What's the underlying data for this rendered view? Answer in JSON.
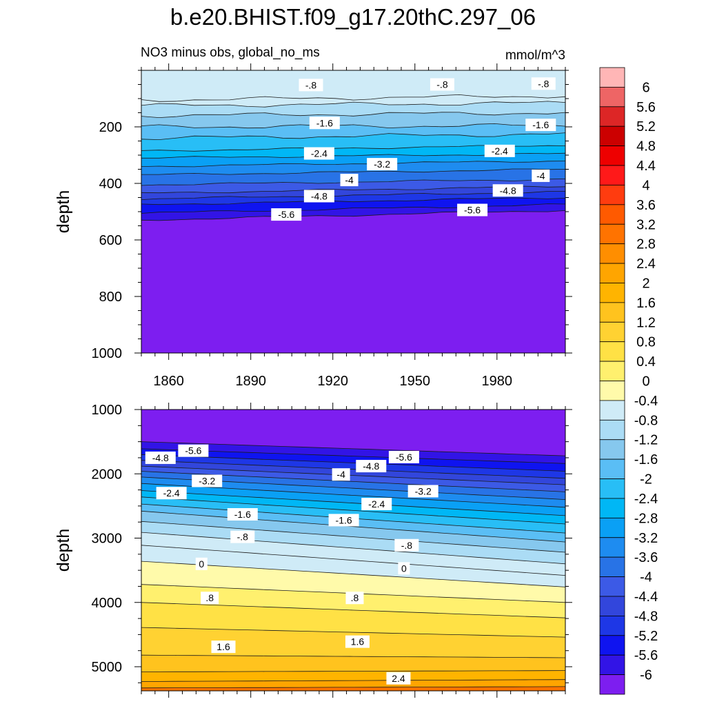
{
  "title": "b.e20.BHIST.f09_g17.20thC.297_06",
  "subtitle_left": "NO3 minus obs, global_no_ms",
  "subtitle_right": "mmol/m^3",
  "chart_data": [
    {
      "type": "heatmap",
      "panel": "upper",
      "title": "NO3 minus obs, global_no_ms",
      "units": "mmol/m^3",
      "ylabel": "depth",
      "xlabel": "",
      "x_ticks": [
        "1860",
        "1890",
        "1920",
        "1950",
        "1980"
      ],
      "y_ticks": [
        "200",
        "400",
        "600",
        "800",
        "1000"
      ],
      "xlim": [
        1850,
        2005
      ],
      "ylim": [
        1000,
        0
      ],
      "y_reversed": true,
      "contour_levels": [
        -6,
        -5.6,
        -5.2,
        -4.8,
        -4.4,
        -4,
        -3.6,
        -3.2,
        -2.8,
        -2.4,
        -2,
        -1.6,
        -1.2,
        -0.8,
        -0.4
      ],
      "contour_depth_at_1850": [
        530,
        505,
        475,
        455,
        435,
        405,
        370,
        340,
        310,
        285,
        240,
        200,
        160,
        125,
        105
      ],
      "contour_depth_at_2005": [
        495,
        475,
        450,
        430,
        410,
        385,
        350,
        320,
        295,
        265,
        225,
        195,
        150,
        115,
        90
      ],
      "contour_labels": [
        {
          "text": "-.8",
          "x": 1912,
          "depth": 52
        },
        {
          "text": "-.8",
          "x": 1960,
          "depth": 50
        },
        {
          "text": "-.8",
          "x": 1997,
          "depth": 47
        },
        {
          "text": "-1.6",
          "x": 1917,
          "depth": 186
        },
        {
          "text": "-1.6",
          "x": 1996,
          "depth": 193
        },
        {
          "text": "-2.4",
          "x": 1915,
          "depth": 294
        },
        {
          "text": "-2.4",
          "x": 1981,
          "depth": 285
        },
        {
          "text": "-3.2",
          "x": 1938,
          "depth": 332
        },
        {
          "text": "-4",
          "x": 1926,
          "depth": 388
        },
        {
          "text": "-4",
          "x": 1996,
          "depth": 373
        },
        {
          "text": "-4.8",
          "x": 1915,
          "depth": 445
        },
        {
          "text": "-4.8",
          "x": 1984,
          "depth": 425
        },
        {
          "text": "-5.6",
          "x": 1903,
          "depth": 510
        },
        {
          "text": "-5.6",
          "x": 1971,
          "depth": 494
        }
      ]
    },
    {
      "type": "heatmap",
      "panel": "lower",
      "ylabel": "depth",
      "xlabel": "",
      "x_ticks": [],
      "y_ticks": [
        "1000",
        "2000",
        "3000",
        "4000",
        "5000"
      ],
      "xlim": [
        1850,
        2005
      ],
      "ylim": [
        5375,
        1000
      ],
      "y_reversed": true,
      "contour_levels": [
        -6,
        -5.6,
        -5.2,
        -4.8,
        -4.4,
        -4,
        -3.6,
        -3.2,
        -2.8,
        -2.4,
        -2,
        -1.6,
        -1.2,
        -0.8,
        -0.4,
        0,
        0.4,
        0.8,
        1.2,
        1.6,
        2,
        2.4,
        2.8
      ],
      "contour_depth_at_1850": [
        1500,
        1610,
        1700,
        1790,
        1880,
        1960,
        2050,
        2150,
        2260,
        2360,
        2470,
        2580,
        2740,
        2910,
        3110,
        3360,
        3720,
        4000,
        4390,
        4820,
        5080,
        5230,
        5330
      ],
      "contour_depth_at_2005": [
        1720,
        1840,
        1960,
        2070,
        2170,
        2280,
        2400,
        2520,
        2650,
        2780,
        2920,
        3060,
        3220,
        3400,
        3580,
        3760,
        4000,
        4240,
        4540,
        4860,
        5060,
        5200,
        5310
      ],
      "contour_labels": [
        {
          "text": "-5.6",
          "x": 1869,
          "depth": 1640
        },
        {
          "text": "-4.8",
          "x": 1857,
          "depth": 1750
        },
        {
          "text": "-3.2",
          "x": 1874,
          "depth": 2110
        },
        {
          "text": "-2.4",
          "x": 1861,
          "depth": 2300
        },
        {
          "text": "-1.6",
          "x": 1887,
          "depth": 2630
        },
        {
          "text": "-.8",
          "x": 1887,
          "depth": 2980
        },
        {
          "text": "0",
          "x": 1872,
          "depth": 3400
        },
        {
          "text": ".8",
          "x": 1875,
          "depth": 3930
        },
        {
          "text": "1.6",
          "x": 1880,
          "depth": 4690
        },
        {
          "text": "-5.6",
          "x": 1946,
          "depth": 1740
        },
        {
          "text": "-4.8",
          "x": 1934,
          "depth": 1880
        },
        {
          "text": "-4",
          "x": 1923,
          "depth": 2010
        },
        {
          "text": "-3.2",
          "x": 1953,
          "depth": 2270
        },
        {
          "text": "-2.4",
          "x": 1936,
          "depth": 2470
        },
        {
          "text": "-1.6",
          "x": 1924,
          "depth": 2720
        },
        {
          "text": "-.8",
          "x": 1947,
          "depth": 3110
        },
        {
          "text": "0",
          "x": 1946,
          "depth": 3470
        },
        {
          "text": ".8",
          "x": 1928,
          "depth": 3930
        },
        {
          "text": "1.6",
          "x": 1929,
          "depth": 4610
        },
        {
          "text": "2.4",
          "x": 1944,
          "depth": 5180
        }
      ]
    }
  ],
  "colorbar": {
    "labels": [
      "6",
      "5.6",
      "5.2",
      "4.8",
      "4.4",
      "4",
      "3.6",
      "3.2",
      "2.8",
      "2.4",
      "2",
      "1.6",
      "1.2",
      "0.8",
      "0.4",
      "0",
      "-0.4",
      "-0.8",
      "-1.2",
      "-1.6",
      "-2",
      "-2.4",
      "-2.8",
      "-3.2",
      "-3.6",
      "-4",
      "-4.4",
      "-4.8",
      "-5.2",
      "-5.6",
      "-6"
    ],
    "colors_top_to_bottom": [
      "#FFB6B6",
      "#EE6565",
      "#DD2626",
      "#CC0000",
      "#EE0000",
      "#FF1919",
      "#FF3C0F",
      "#FF5A00",
      "#FF7300",
      "#FF8E00",
      "#FFA500",
      "#FFB400",
      "#FFC31E",
      "#FFD232",
      "#FFE145",
      "#FFF06E",
      "#FFFAAA",
      "#CFEBF7",
      "#ABDCF5",
      "#86C8EE",
      "#5ABEF5",
      "#28BEF6",
      "#00B7F5",
      "#0AA0F5",
      "#1E8CF0",
      "#2873E6",
      "#3C5AE6",
      "#3246DC",
      "#1E37E6",
      "#0F14F0",
      "#3214E6",
      "#7D1EF0"
    ]
  },
  "palette": {
    "below": [
      "#7D1EF0",
      "#3214E6",
      "#0F14F0",
      "#1E37E6",
      "#3246DC",
      "#3C5AE6",
      "#2873E6",
      "#1E8CF0",
      "#0AA0F5",
      "#00B7F5",
      "#28BEF6",
      "#5ABEF5",
      "#86C8EE",
      "#ABDCF5",
      "#CFEBF7"
    ],
    "above": [
      "#FFFAAA",
      "#FFF06E",
      "#FFE145",
      "#FFD232",
      "#FFC31E",
      "#FFB400",
      "#FFA500",
      "#FF8E00",
      "#FF7300",
      "#FF5A00"
    ]
  }
}
